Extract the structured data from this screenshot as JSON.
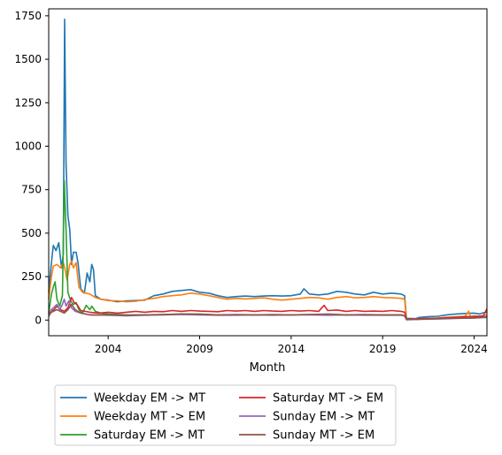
{
  "chart_data": {
    "type": "line",
    "title": "",
    "xlabel": "Month",
    "ylabel": "",
    "xlim": [
      2000.75,
      2024.7
    ],
    "ylim": [
      -90,
      1790
    ],
    "x_ticks": [
      2004,
      2009,
      2014,
      2019,
      2024
    ],
    "y_ticks": [
      0,
      250,
      500,
      750,
      1000,
      1250,
      1500,
      1750
    ],
    "grid": false,
    "legend_position": "below",
    "series": [
      {
        "name": "Weekday EM -> MT",
        "color": "#1f77b4",
        "points": [
          [
            2000.75,
            160
          ],
          [
            2000.9,
            330
          ],
          [
            2001.0,
            430
          ],
          [
            2001.15,
            400
          ],
          [
            2001.3,
            445
          ],
          [
            2001.45,
            300
          ],
          [
            2001.55,
            380
          ],
          [
            2001.62,
            1730
          ],
          [
            2001.7,
            900
          ],
          [
            2001.8,
            600
          ],
          [
            2001.9,
            520
          ],
          [
            2002.0,
            320
          ],
          [
            2002.1,
            390
          ],
          [
            2002.25,
            390
          ],
          [
            2002.35,
            330
          ],
          [
            2002.5,
            180
          ],
          [
            2002.7,
            155
          ],
          [
            2002.85,
            270
          ],
          [
            2003.0,
            220
          ],
          [
            2003.1,
            320
          ],
          [
            2003.2,
            290
          ],
          [
            2003.3,
            140
          ],
          [
            2003.6,
            120
          ],
          [
            2004.0,
            115
          ],
          [
            2004.5,
            105
          ],
          [
            2005.0,
            110
          ],
          [
            2005.5,
            112
          ],
          [
            2006.0,
            115
          ],
          [
            2006.5,
            140
          ],
          [
            2007.0,
            150
          ],
          [
            2007.5,
            165
          ],
          [
            2008.0,
            170
          ],
          [
            2008.5,
            175
          ],
          [
            2009.0,
            160
          ],
          [
            2009.5,
            155
          ],
          [
            2010.0,
            140
          ],
          [
            2010.5,
            130
          ],
          [
            2011.0,
            135
          ],
          [
            2011.5,
            138
          ],
          [
            2012.0,
            135
          ],
          [
            2012.5,
            138
          ],
          [
            2013.0,
            140
          ],
          [
            2013.5,
            138
          ],
          [
            2014.0,
            140
          ],
          [
            2014.5,
            150
          ],
          [
            2014.7,
            180
          ],
          [
            2015.0,
            150
          ],
          [
            2015.5,
            145
          ],
          [
            2016.0,
            150
          ],
          [
            2016.5,
            165
          ],
          [
            2017.0,
            160
          ],
          [
            2017.5,
            150
          ],
          [
            2018.0,
            145
          ],
          [
            2018.5,
            160
          ],
          [
            2019.0,
            150
          ],
          [
            2019.5,
            155
          ],
          [
            2020.0,
            150
          ],
          [
            2020.2,
            140
          ],
          [
            2020.3,
            10
          ],
          [
            2020.8,
            8
          ],
          [
            2021.0,
            15
          ],
          [
            2021.5,
            20
          ],
          [
            2022.0,
            22
          ],
          [
            2022.5,
            30
          ],
          [
            2023.0,
            35
          ],
          [
            2023.5,
            38
          ],
          [
            2024.0,
            40
          ],
          [
            2024.3,
            35
          ],
          [
            2024.5,
            42
          ],
          [
            2024.7,
            45
          ]
        ]
      },
      {
        "name": "Weekday MT -> EM",
        "color": "#ff7f0e",
        "points": [
          [
            2000.75,
            120
          ],
          [
            2000.9,
            250
          ],
          [
            2001.0,
            310
          ],
          [
            2001.2,
            320
          ],
          [
            2001.4,
            300
          ],
          [
            2001.55,
            330
          ],
          [
            2001.65,
            290
          ],
          [
            2001.75,
            230
          ],
          [
            2001.9,
            320
          ],
          [
            2002.0,
            340
          ],
          [
            2002.1,
            300
          ],
          [
            2002.25,
            330
          ],
          [
            2002.4,
            190
          ],
          [
            2002.6,
            160
          ],
          [
            2003.0,
            150
          ],
          [
            2003.3,
            130
          ],
          [
            2003.6,
            120
          ],
          [
            2004.0,
            112
          ],
          [
            2004.5,
            110
          ],
          [
            2005.0,
            105
          ],
          [
            2005.5,
            108
          ],
          [
            2006.0,
            118
          ],
          [
            2006.5,
            125
          ],
          [
            2007.0,
            135
          ],
          [
            2007.5,
            140
          ],
          [
            2008.0,
            145
          ],
          [
            2008.5,
            155
          ],
          [
            2009.0,
            150
          ],
          [
            2009.5,
            140
          ],
          [
            2010.0,
            130
          ],
          [
            2010.5,
            120
          ],
          [
            2011.0,
            125
          ],
          [
            2011.5,
            122
          ],
          [
            2012.0,
            125
          ],
          [
            2012.5,
            128
          ],
          [
            2013.0,
            120
          ],
          [
            2013.5,
            115
          ],
          [
            2014.0,
            120
          ],
          [
            2014.5,
            125
          ],
          [
            2015.0,
            130
          ],
          [
            2015.5,
            128
          ],
          [
            2016.0,
            120
          ],
          [
            2016.5,
            130
          ],
          [
            2017.0,
            135
          ],
          [
            2017.5,
            128
          ],
          [
            2018.0,
            130
          ],
          [
            2018.5,
            135
          ],
          [
            2019.0,
            130
          ],
          [
            2019.5,
            128
          ],
          [
            2020.0,
            125
          ],
          [
            2020.2,
            120
          ],
          [
            2020.3,
            5
          ],
          [
            2020.8,
            6
          ],
          [
            2021.0,
            8
          ],
          [
            2021.5,
            10
          ],
          [
            2022.0,
            12
          ],
          [
            2022.5,
            15
          ],
          [
            2023.0,
            20
          ],
          [
            2023.5,
            22
          ],
          [
            2023.7,
            50
          ],
          [
            2023.8,
            20
          ],
          [
            2024.0,
            25
          ],
          [
            2024.3,
            20
          ],
          [
            2024.5,
            25
          ],
          [
            2024.7,
            30
          ]
        ]
      },
      {
        "name": "Saturday EM -> MT",
        "color": "#2ca02c",
        "points": [
          [
            2000.75,
            40
          ],
          [
            2000.9,
            150
          ],
          [
            2001.0,
            190
          ],
          [
            2001.1,
            220
          ],
          [
            2001.2,
            120
          ],
          [
            2001.35,
            80
          ],
          [
            2001.5,
            140
          ],
          [
            2001.6,
            800
          ],
          [
            2001.7,
            520
          ],
          [
            2001.8,
            160
          ],
          [
            2001.95,
            110
          ],
          [
            2002.1,
            90
          ],
          [
            2002.25,
            100
          ],
          [
            2002.4,
            60
          ],
          [
            2002.6,
            40
          ],
          [
            2002.8,
            85
          ],
          [
            2003.0,
            60
          ],
          [
            2003.1,
            80
          ],
          [
            2003.3,
            50
          ],
          [
            2003.6,
            40
          ],
          [
            2004.0,
            35
          ],
          [
            2005.0,
            30
          ],
          [
            2006.0,
            30
          ],
          [
            2007.0,
            32
          ],
          [
            2008.0,
            35
          ],
          [
            2009.0,
            35
          ],
          [
            2010.0,
            30
          ],
          [
            2011.0,
            30
          ],
          [
            2012.0,
            30
          ],
          [
            2013.0,
            30
          ],
          [
            2014.0,
            30
          ],
          [
            2015.0,
            32
          ],
          [
            2016.0,
            30
          ],
          [
            2017.0,
            30
          ],
          [
            2018.0,
            30
          ],
          [
            2019.0,
            30
          ],
          [
            2020.0,
            30
          ],
          [
            2020.2,
            25
          ],
          [
            2020.3,
            3
          ],
          [
            2021.0,
            5
          ],
          [
            2022.0,
            8
          ],
          [
            2023.0,
            12
          ],
          [
            2024.0,
            15
          ],
          [
            2024.7,
            20
          ]
        ]
      },
      {
        "name": "Saturday MT -> EM",
        "color": "#d62728",
        "points": [
          [
            2000.75,
            30
          ],
          [
            2000.9,
            60
          ],
          [
            2001.0,
            55
          ],
          [
            2001.2,
            80
          ],
          [
            2001.4,
            60
          ],
          [
            2001.6,
            50
          ],
          [
            2001.8,
            70
          ],
          [
            2002.0,
            130
          ],
          [
            2002.15,
            100
          ],
          [
            2002.3,
            90
          ],
          [
            2002.5,
            55
          ],
          [
            2003.0,
            45
          ],
          [
            2003.5,
            40
          ],
          [
            2004.0,
            45
          ],
          [
            2004.5,
            40
          ],
          [
            2005.0,
            45
          ],
          [
            2005.5,
            50
          ],
          [
            2006.0,
            45
          ],
          [
            2006.5,
            50
          ],
          [
            2007.0,
            48
          ],
          [
            2007.5,
            55
          ],
          [
            2008.0,
            50
          ],
          [
            2008.5,
            55
          ],
          [
            2009.0,
            52
          ],
          [
            2009.5,
            50
          ],
          [
            2010.0,
            48
          ],
          [
            2010.5,
            55
          ],
          [
            2011.0,
            52
          ],
          [
            2011.5,
            55
          ],
          [
            2012.0,
            50
          ],
          [
            2012.5,
            55
          ],
          [
            2013.0,
            52
          ],
          [
            2013.5,
            50
          ],
          [
            2014.0,
            55
          ],
          [
            2014.5,
            52
          ],
          [
            2015.0,
            55
          ],
          [
            2015.5,
            50
          ],
          [
            2015.8,
            85
          ],
          [
            2016.0,
            55
          ],
          [
            2016.5,
            58
          ],
          [
            2017.0,
            50
          ],
          [
            2017.5,
            55
          ],
          [
            2018.0,
            50
          ],
          [
            2018.5,
            52
          ],
          [
            2019.0,
            50
          ],
          [
            2019.5,
            55
          ],
          [
            2020.0,
            50
          ],
          [
            2020.2,
            45
          ],
          [
            2020.3,
            5
          ],
          [
            2021.0,
            8
          ],
          [
            2022.0,
            10
          ],
          [
            2022.5,
            15
          ],
          [
            2023.0,
            15
          ],
          [
            2023.5,
            20
          ],
          [
            2024.0,
            20
          ],
          [
            2024.5,
            25
          ],
          [
            2024.7,
            65
          ]
        ]
      },
      {
        "name": "Sunday EM -> MT",
        "color": "#9467bd",
        "points": [
          [
            2000.75,
            20
          ],
          [
            2000.9,
            60
          ],
          [
            2001.0,
            70
          ],
          [
            2001.2,
            90
          ],
          [
            2001.35,
            60
          ],
          [
            2001.5,
            90
          ],
          [
            2001.6,
            120
          ],
          [
            2001.7,
            80
          ],
          [
            2001.85,
            110
          ],
          [
            2002.0,
            70
          ],
          [
            2002.2,
            50
          ],
          [
            2002.5,
            40
          ],
          [
            2003.0,
            30
          ],
          [
            2004.0,
            28
          ],
          [
            2005.0,
            25
          ],
          [
            2006.0,
            28
          ],
          [
            2007.0,
            30
          ],
          [
            2008.0,
            32
          ],
          [
            2009.0,
            30
          ],
          [
            2010.0,
            28
          ],
          [
            2011.0,
            28
          ],
          [
            2012.0,
            30
          ],
          [
            2013.0,
            28
          ],
          [
            2014.0,
            30
          ],
          [
            2015.0,
            30
          ],
          [
            2016.0,
            28
          ],
          [
            2017.0,
            30
          ],
          [
            2018.0,
            28
          ],
          [
            2019.0,
            28
          ],
          [
            2020.0,
            28
          ],
          [
            2020.2,
            25
          ],
          [
            2020.3,
            2
          ],
          [
            2021.0,
            4
          ],
          [
            2022.0,
            6
          ],
          [
            2023.0,
            10
          ],
          [
            2024.0,
            12
          ],
          [
            2024.7,
            15
          ]
        ]
      },
      {
        "name": "Sunday MT -> EM",
        "color": "#8c564b",
        "points": [
          [
            2000.75,
            25
          ],
          [
            2000.9,
            45
          ],
          [
            2001.0,
            50
          ],
          [
            2001.2,
            60
          ],
          [
            2001.4,
            50
          ],
          [
            2001.6,
            40
          ],
          [
            2001.8,
            60
          ],
          [
            2002.0,
            90
          ],
          [
            2002.2,
            60
          ],
          [
            2002.5,
            40
          ],
          [
            2003.0,
            30
          ],
          [
            2004.0,
            30
          ],
          [
            2005.0,
            28
          ],
          [
            2006.0,
            30
          ],
          [
            2007.0,
            32
          ],
          [
            2008.0,
            35
          ],
          [
            2009.0,
            33
          ],
          [
            2010.0,
            30
          ],
          [
            2011.0,
            32
          ],
          [
            2012.0,
            30
          ],
          [
            2013.0,
            32
          ],
          [
            2014.0,
            30
          ],
          [
            2015.0,
            32
          ],
          [
            2016.0,
            35
          ],
          [
            2017.0,
            30
          ],
          [
            2018.0,
            32
          ],
          [
            2019.0,
            30
          ],
          [
            2020.0,
            30
          ],
          [
            2020.2,
            25
          ],
          [
            2020.3,
            3
          ],
          [
            2021.0,
            5
          ],
          [
            2022.0,
            8
          ],
          [
            2023.0,
            10
          ],
          [
            2024.0,
            12
          ],
          [
            2024.7,
            18
          ]
        ]
      }
    ]
  }
}
